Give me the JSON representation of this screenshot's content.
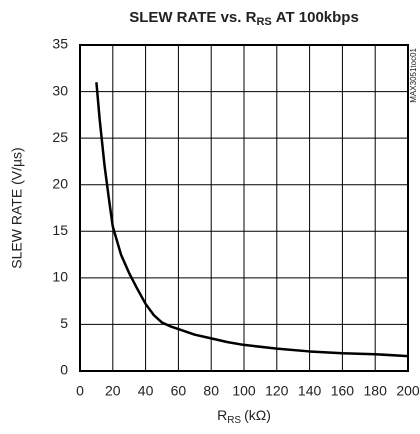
{
  "chart_data": {
    "type": "line",
    "title": {
      "main": "SLEW RATE vs. R",
      "subscript": "RS",
      "rest": "AT 100kbps"
    },
    "xlabel": {
      "main": "R",
      "subscript": "RS",
      "rest": "(kΩ)"
    },
    "ylabel": "SLEW RATE (V/µs)",
    "watermark": "MAX3051toc01",
    "x": [
      10,
      12,
      15,
      18,
      20,
      25,
      30,
      35,
      40,
      45,
      50,
      55,
      60,
      70,
      80,
      90,
      100,
      120,
      140,
      160,
      180,
      200
    ],
    "series": [
      {
        "name": "SLEW RATE",
        "color": "#000000",
        "values": [
          31,
          27,
          22,
          18,
          15.5,
          12.5,
          10.5,
          8.8,
          7.2,
          6,
          5.2,
          4.8,
          4.5,
          3.9,
          3.5,
          3.1,
          2.8,
          2.4,
          2.1,
          1.9,
          1.8,
          1.6
        ]
      }
    ],
    "xlim": [
      0,
      200
    ],
    "xticks": [
      0,
      20,
      40,
      60,
      80,
      100,
      120,
      140,
      160,
      180,
      200
    ],
    "ylim": [
      0,
      35
    ],
    "yticks": [
      0,
      5,
      10,
      15,
      20,
      25,
      30,
      35
    ],
    "grid": true
  }
}
